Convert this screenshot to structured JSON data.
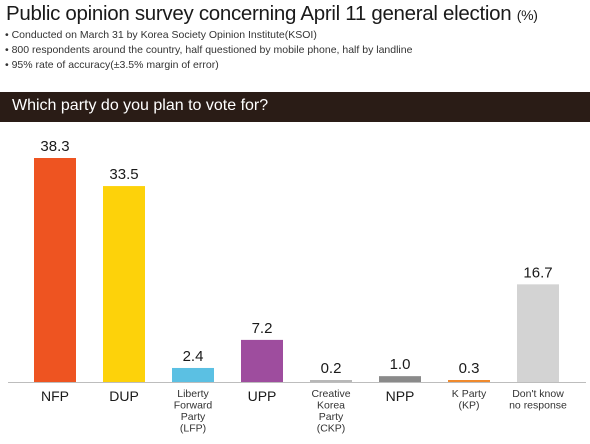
{
  "header": {
    "title": "Public opinion survey concerning April 11 general election",
    "unit": "(%)",
    "notes": [
      "• Conducted on March 31 by Korea Society Opinion Institute(KSOI)",
      "• 800 respondents around the country, half questioned by mobile phone, half by landline",
      "• 95% rate of accuracy(±3.5% margin of error)"
    ]
  },
  "question": "Which party do you plan to vote for?",
  "chart_data": {
    "type": "bar",
    "title": "Public opinion survey concerning April 11 general election",
    "ylabel": "",
    "xlabel": "",
    "ylim": [
      0,
      40
    ],
    "grid": false,
    "categories": [
      {
        "lines": [
          "NFP"
        ],
        "style": "large"
      },
      {
        "lines": [
          "DUP"
        ],
        "style": "large"
      },
      {
        "lines": [
          "Liberty",
          "Forward",
          "Party",
          "(LFP)"
        ],
        "style": "small"
      },
      {
        "lines": [
          "UPP"
        ],
        "style": "large"
      },
      {
        "lines": [
          "Creative",
          "Korea",
          "Party",
          "(CKP)"
        ],
        "style": "small"
      },
      {
        "lines": [
          "NPP"
        ],
        "style": "large"
      },
      {
        "lines": [
          "K Party",
          "(KP)"
        ],
        "style": "small"
      },
      {
        "lines": [
          "Don't know",
          "no response"
        ],
        "style": "small"
      }
    ],
    "values": [
      38.3,
      33.5,
      2.4,
      7.2,
      0.2,
      1.0,
      0.3,
      16.7
    ],
    "value_labels": [
      "38.3",
      "33.5",
      "2.4",
      "7.2",
      "0.2",
      "1.0",
      "0.3",
      "16.7"
    ],
    "colors": [
      "#ee5421",
      "#fdd20a",
      "#5bc0e3",
      "#9e4d9e",
      "#b8b8b8",
      "#8a8a8a",
      "#f08a2e",
      "#d3d3d3"
    ]
  }
}
